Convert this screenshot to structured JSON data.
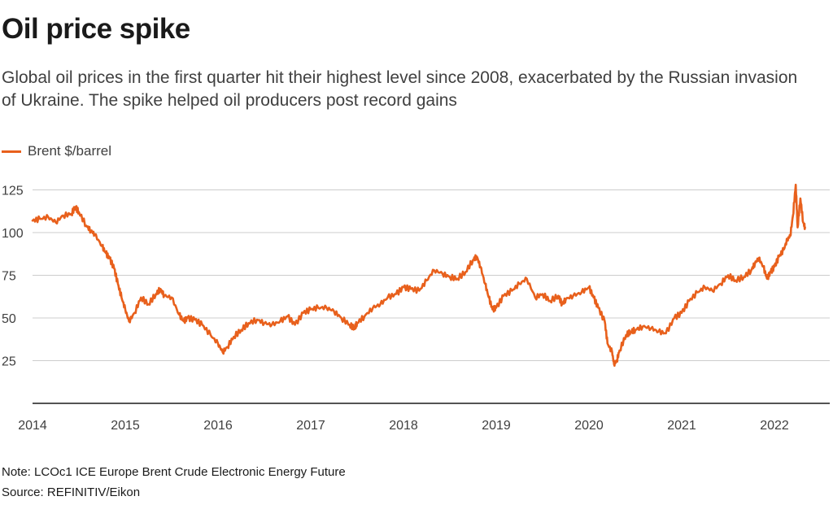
{
  "title": "Oil price spike",
  "subtitle": "Global oil prices in the first quarter hit their highest level since 2008, exacerbated by the Russian invasion of Ukraine. The spike helped oil producers post record gains",
  "note": "Note: LCOc1 ICE Europe Brent Crude Electronic Energy Future",
  "source": "Source: REFINITIV/Eikon",
  "colors": {
    "series": "#e8601c",
    "grid": "#cccccc",
    "axis": "#1a1a1a"
  },
  "chart_data": {
    "type": "line",
    "title": "Oil price spike",
    "xlabel": "",
    "ylabel": "",
    "grid": true,
    "legend_position": "top-left",
    "x_tick_labels": [
      "2014",
      "2015",
      "2016",
      "2017",
      "2018",
      "2019",
      "2020",
      "2021",
      "2022"
    ],
    "y_ticks": [
      25,
      50,
      75,
      100,
      125
    ],
    "xlim": [
      2014.0,
      2022.5
    ],
    "ylim": [
      0,
      130
    ],
    "series": [
      {
        "name": "Brent $/barrel",
        "x": [
          2014.0,
          2014.08,
          2014.17,
          2014.25,
          2014.33,
          2014.42,
          2014.46,
          2014.5,
          2014.58,
          2014.63,
          2014.67,
          2014.75,
          2014.79,
          2014.83,
          2014.88,
          2014.92,
          2014.96,
          2015.0,
          2015.04,
          2015.1,
          2015.17,
          2015.25,
          2015.33,
          2015.38,
          2015.42,
          2015.5,
          2015.58,
          2015.63,
          2015.67,
          2015.75,
          2015.83,
          2015.92,
          2016.0,
          2016.05,
          2016.1,
          2016.17,
          2016.25,
          2016.33,
          2016.42,
          2016.5,
          2016.58,
          2016.67,
          2016.75,
          2016.83,
          2016.92,
          2017.0,
          2017.08,
          2017.17,
          2017.25,
          2017.33,
          2017.42,
          2017.47,
          2017.5,
          2017.58,
          2017.67,
          2017.75,
          2017.83,
          2017.92,
          2018.0,
          2018.08,
          2018.17,
          2018.25,
          2018.33,
          2018.42,
          2018.5,
          2018.58,
          2018.67,
          2018.75,
          2018.79,
          2018.83,
          2018.88,
          2018.92,
          2018.96,
          2019.0,
          2019.08,
          2019.17,
          2019.25,
          2019.33,
          2019.42,
          2019.5,
          2019.58,
          2019.67,
          2019.71,
          2019.75,
          2019.83,
          2019.92,
          2020.0,
          2020.05,
          2020.1,
          2020.17,
          2020.2,
          2020.25,
          2020.27,
          2020.3,
          2020.33,
          2020.4,
          2020.45,
          2020.5,
          2020.58,
          2020.67,
          2020.75,
          2020.83,
          2020.92,
          2021.0,
          2021.08,
          2021.17,
          2021.25,
          2021.33,
          2021.42,
          2021.5,
          2021.58,
          2021.67,
          2021.75,
          2021.79,
          2021.83,
          2021.88,
          2021.92,
          2021.96,
          2022.0,
          2022.05,
          2022.1,
          2022.14,
          2022.17,
          2022.2,
          2022.23,
          2022.25,
          2022.28,
          2022.31,
          2022.33
        ],
        "values": [
          107,
          108,
          109,
          106,
          110,
          111,
          115,
          112,
          104,
          101,
          99,
          92,
          88,
          85,
          79,
          70,
          62,
          55,
          48,
          53,
          62,
          58,
          64,
          67,
          63,
          62,
          52,
          48,
          50,
          49,
          46,
          40,
          35,
          30,
          33,
          39,
          43,
          47,
          49,
          47,
          46,
          48,
          51,
          46,
          53,
          55,
          56,
          56,
          54,
          50,
          46,
          44,
          47,
          51,
          56,
          58,
          62,
          64,
          68,
          67,
          66,
          72,
          78,
          76,
          74,
          73,
          77,
          84,
          86,
          80,
          70,
          62,
          55,
          56,
          63,
          66,
          70,
          73,
          62,
          64,
          60,
          63,
          58,
          61,
          63,
          65,
          68,
          62,
          56,
          48,
          35,
          30,
          23,
          25,
          31,
          40,
          42,
          43,
          45,
          44,
          42,
          41,
          50,
          53,
          60,
          65,
          68,
          66,
          70,
          75,
          72,
          74,
          78,
          82,
          85,
          80,
          73,
          77,
          80,
          86,
          90,
          96,
          98,
          110,
          128,
          103,
          120,
          106,
          103
        ]
      }
    ]
  }
}
